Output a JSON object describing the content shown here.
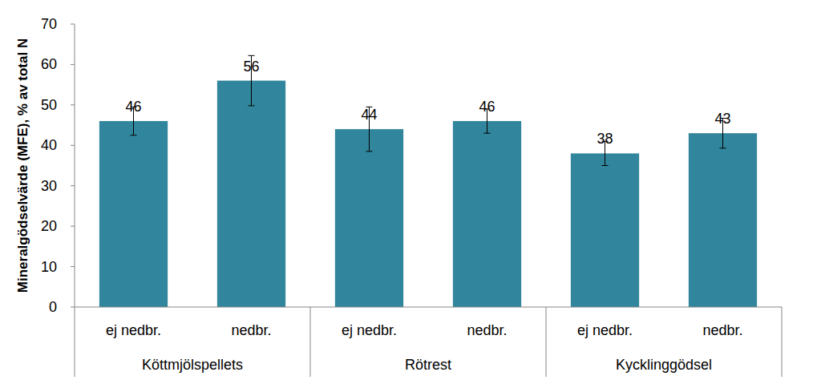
{
  "chart_data": {
    "type": "bar",
    "y_label": "Mineralgödselvärde (MFE), % av total N",
    "categories": [
      "ej nedbr.",
      "nedbr.",
      "ej nedbr.",
      "nedbr.",
      "ej nedbr.",
      "nedbr."
    ],
    "groups": [
      "Köttmjölspellets",
      "Rötrest",
      "Kycklinggödsel"
    ],
    "values": [
      46,
      56,
      44,
      46,
      38,
      43
    ],
    "errors": [
      3.5,
      6.2,
      5.5,
      3.0,
      3.0,
      3.7
    ],
    "color": "#31859c",
    "ylim": [
      0,
      70
    ],
    "yticks": [
      0,
      10,
      20,
      30,
      40,
      50,
      60,
      70
    ],
    "grid": false,
    "data_labels": true
  }
}
